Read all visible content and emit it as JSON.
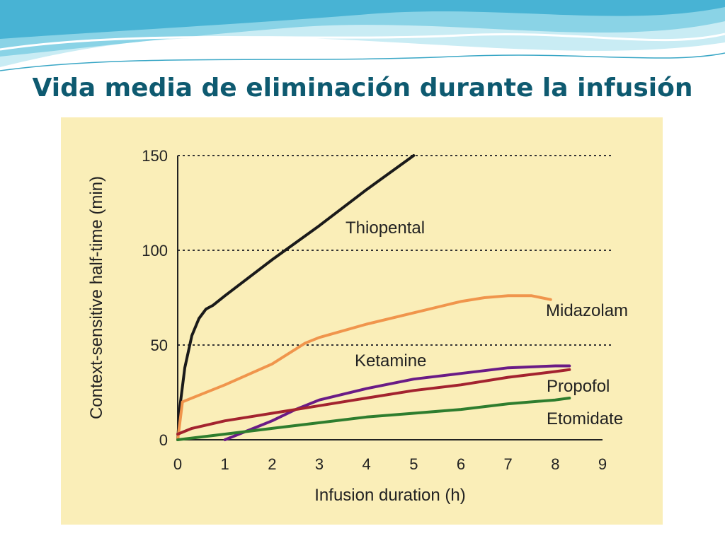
{
  "slide": {
    "title": "Vida media de eliminación durante la infusión"
  },
  "chart_data": {
    "type": "line",
    "xlabel": "Infusion duration (h)",
    "ylabel": "Context-sensitive half-time (min)",
    "xlim": [
      0,
      9
    ],
    "ylim": [
      0,
      150
    ],
    "xticks": [
      "0",
      "1",
      "2",
      "3",
      "4",
      "5",
      "6",
      "7",
      "8",
      "9"
    ],
    "yticks": [
      "0",
      "50",
      "100",
      "150"
    ],
    "gridlines_y": [
      50,
      100,
      150
    ],
    "grid_style": "dotted horizontal",
    "series": [
      {
        "name": "Thiopental",
        "color": "#1a1a1a",
        "x": [
          0,
          0.05,
          0.15,
          0.3,
          0.45,
          0.6,
          0.75,
          1,
          2,
          3,
          4,
          5
        ],
        "y": [
          0,
          18,
          38,
          55,
          64,
          69,
          71,
          76,
          95,
          113,
          132,
          150
        ]
      },
      {
        "name": "Midazolam",
        "color": "#f0954c",
        "x": [
          0,
          0.1,
          0.5,
          1,
          2,
          2.7,
          3,
          4,
          5,
          6,
          6.5,
          7,
          7.5,
          7.9
        ],
        "y": [
          0,
          20,
          24,
          29,
          40,
          51,
          54,
          61,
          67,
          73,
          75,
          76,
          76,
          74
        ]
      },
      {
        "name": "Ketamine",
        "color": "#6a1b86",
        "x": [
          1,
          1.5,
          2,
          2.5,
          3,
          4,
          5,
          6,
          7,
          8,
          8.3
        ],
        "y": [
          0,
          5,
          10,
          16,
          21,
          27,
          32,
          35,
          38,
          39,
          39
        ]
      },
      {
        "name": "Propofol",
        "color": "#a3232f",
        "x": [
          0,
          0.3,
          1,
          2,
          3,
          4,
          5,
          6,
          7,
          8,
          8.3
        ],
        "y": [
          3,
          6,
          10,
          14,
          18,
          22,
          26,
          29,
          33,
          36,
          37
        ]
      },
      {
        "name": "Etomidate",
        "color": "#2e7d2e",
        "x": [
          0,
          1,
          2,
          3,
          4,
          5,
          6,
          7,
          8,
          8.3
        ],
        "y": [
          0,
          3,
          6,
          9,
          12,
          14,
          16,
          19,
          21,
          22
        ]
      }
    ]
  }
}
